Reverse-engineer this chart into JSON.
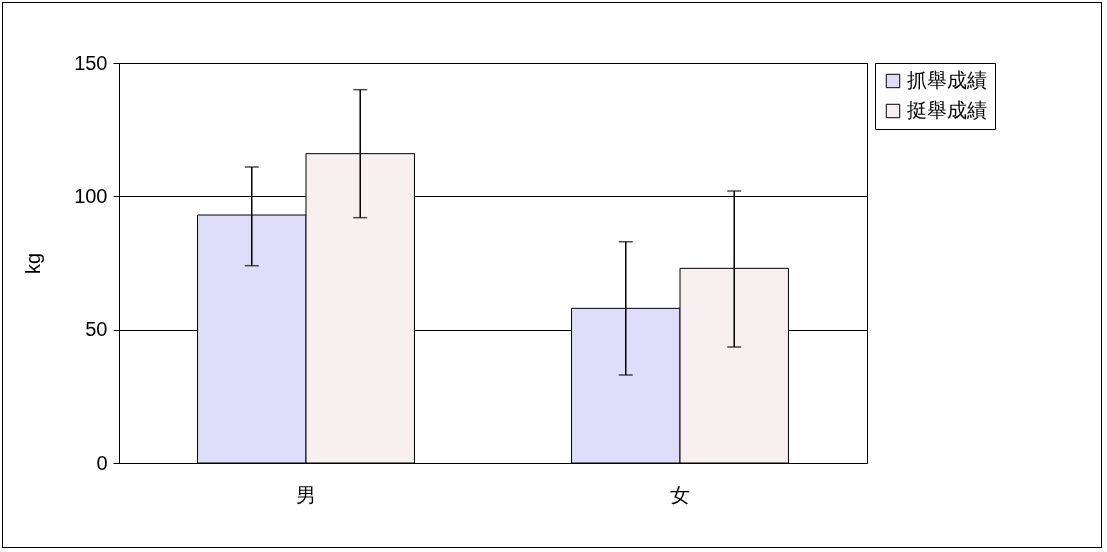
{
  "chart_data": {
    "type": "bar",
    "ylabel": "kg",
    "categories": [
      "男",
      "女"
    ],
    "series": [
      {
        "name": "抓舉成績",
        "color": "#dedefa",
        "values": [
          93,
          58
        ],
        "errors": [
          [
            74,
            111
          ],
          [
            33,
            83
          ]
        ]
      },
      {
        "name": "挺舉成績",
        "color": "#f8f0f0",
        "values": [
          116,
          73
        ],
        "errors": [
          [
            92,
            140
          ],
          [
            43.5,
            102
          ]
        ]
      }
    ],
    "ylim": [
      0,
      150
    ],
    "yticks": [
      0,
      50,
      100,
      150
    ],
    "grid": "y",
    "legend": "right"
  }
}
